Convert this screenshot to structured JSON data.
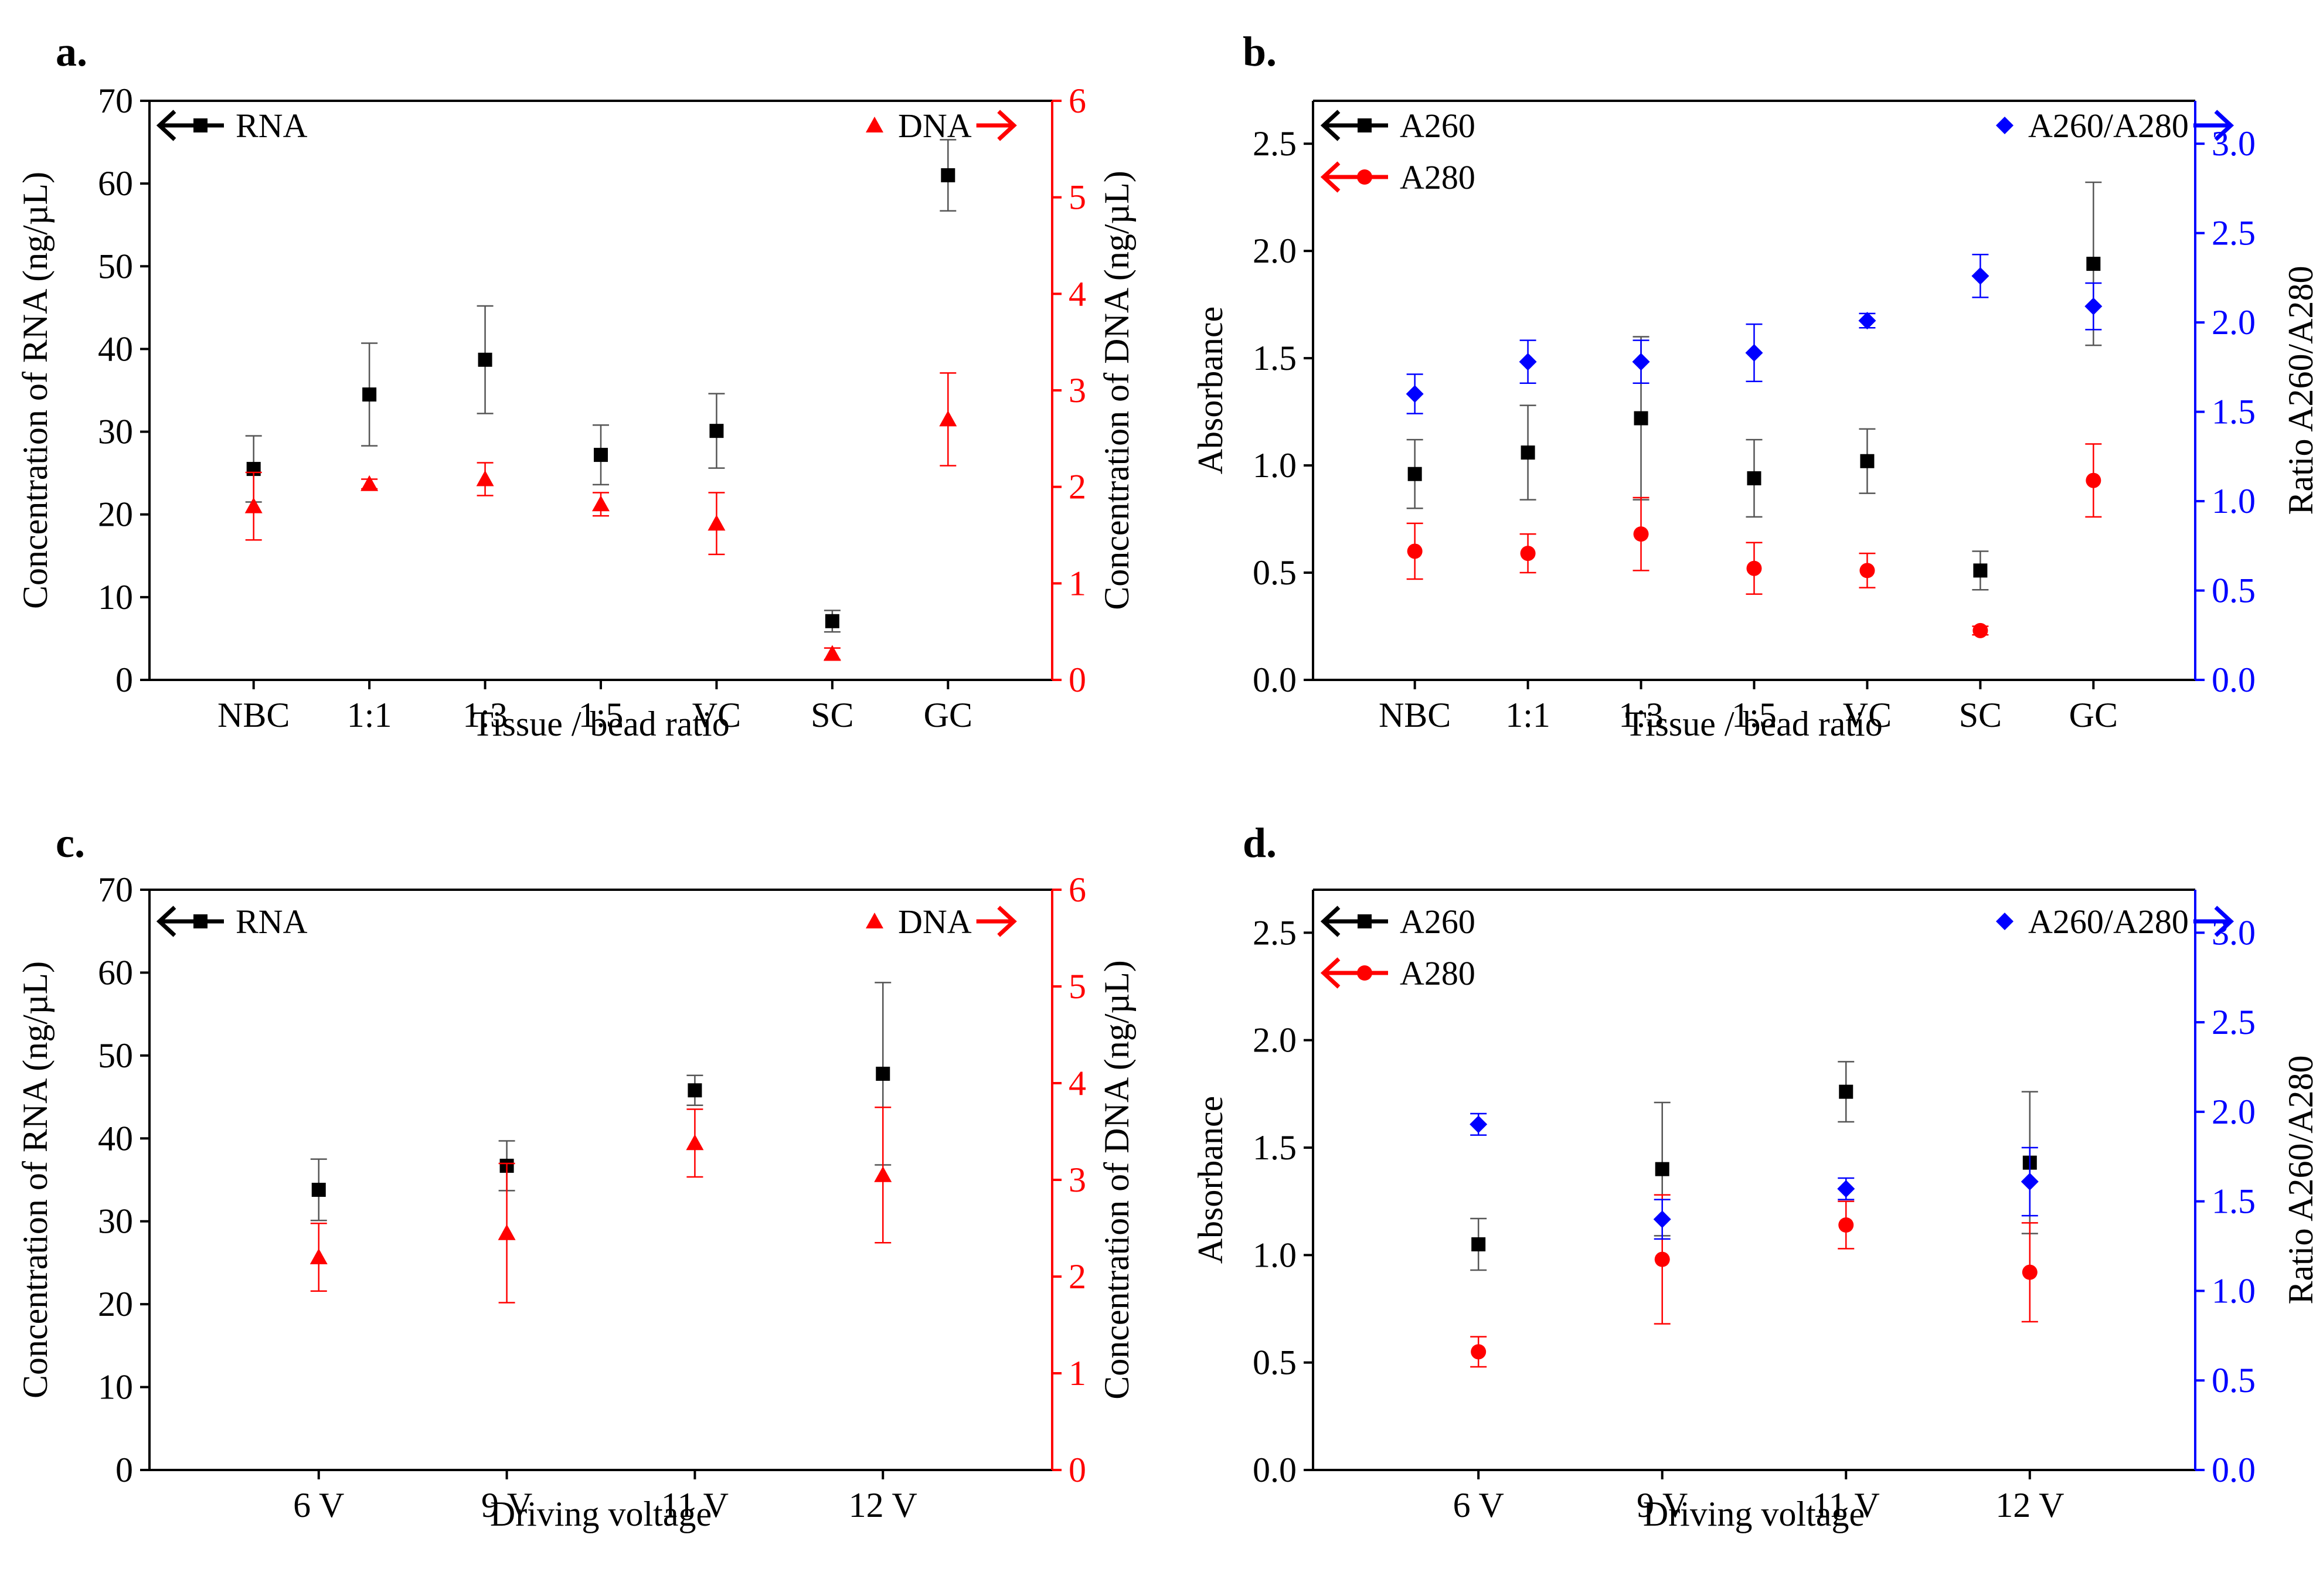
{
  "chart_data": [
    {
      "panel_label": "a.",
      "type": "scatter",
      "xlabel": "Tissue / bead ratio",
      "categories": [
        "NBC",
        "1:1",
        "1:3",
        "1:5",
        "VC",
        "SC",
        "GC"
      ],
      "y_left": {
        "label": "Concentration of RNA (ng/µL)",
        "lim": [
          0,
          70
        ],
        "ticks": [
          "0",
          "10",
          "20",
          "30",
          "40",
          "50",
          "60",
          "70"
        ]
      },
      "y_right": {
        "label": "Concentration of DNA (ng/µL)",
        "lim": [
          0,
          6
        ],
        "ticks": [
          "0",
          "1",
          "2",
          "3",
          "4",
          "5",
          "6"
        ],
        "color": "#ff0000"
      },
      "legend": [
        "RNA",
        "DNA"
      ],
      "series": [
        {
          "name": "RNA",
          "axis": "left",
          "marker": "square",
          "color": "#000000",
          "values": [
            25.5,
            34.5,
            38.7,
            27.2,
            30.1,
            7.1,
            61.0
          ],
          "errors": [
            4.0,
            6.2,
            6.5,
            3.6,
            4.5,
            1.3,
            4.3
          ]
        },
        {
          "name": "DNA",
          "axis": "right",
          "marker": "triangle",
          "color": "#ff0000",
          "values": [
            1.8,
            2.03,
            2.08,
            1.82,
            1.62,
            0.27,
            2.7
          ],
          "errors": [
            0.35,
            0.05,
            0.17,
            0.12,
            0.32,
            0.06,
            0.48
          ]
        }
      ]
    },
    {
      "panel_label": "b.",
      "type": "scatter",
      "xlabel": "Tissue / bead ratio",
      "categories": [
        "NBC",
        "1:1",
        "1:3",
        "1:5",
        "VC",
        "SC",
        "GC"
      ],
      "y_left": {
        "label": "Absorbance",
        "lim": [
          0,
          2.7
        ],
        "ticks": [
          "0.0",
          "0.5",
          "1.0",
          "1.5",
          "2.0",
          "2.5"
        ]
      },
      "y_right": {
        "label": "Ratio A260/A280",
        "lim": [
          0,
          3.24
        ],
        "ticks": [
          "0.0",
          "0.5",
          "1.0",
          "1.5",
          "2.0",
          "2.5",
          "3.0"
        ],
        "color": "#0000ff"
      },
      "legend": [
        "A260",
        "A280",
        "A260/A280"
      ],
      "series": [
        {
          "name": "A260",
          "axis": "left",
          "marker": "square",
          "color": "#000000",
          "values": [
            0.96,
            1.06,
            1.22,
            0.94,
            1.02,
            0.51,
            1.94
          ],
          "errors": [
            0.16,
            0.22,
            0.38,
            0.18,
            0.15,
            0.09,
            0.38
          ]
        },
        {
          "name": "A280",
          "axis": "left",
          "marker": "circle",
          "color": "#ff0000",
          "values": [
            0.6,
            0.59,
            0.68,
            0.52,
            0.51,
            0.23,
            0.93
          ],
          "errors": [
            0.13,
            0.09,
            0.17,
            0.12,
            0.08,
            0.02,
            0.17
          ]
        },
        {
          "name": "A260/A280",
          "axis": "right",
          "marker": "diamond",
          "color": "#0000ff",
          "values": [
            1.6,
            1.78,
            1.78,
            1.83,
            2.01,
            2.26,
            2.09
          ],
          "errors": [
            0.11,
            0.12,
            0.12,
            0.16,
            0.04,
            0.12,
            0.13
          ]
        }
      ]
    },
    {
      "panel_label": "c.",
      "type": "scatter",
      "xlabel": "Driving voltage",
      "categories": [
        "6 V",
        "9 V",
        "11 V",
        "12 V"
      ],
      "y_left": {
        "label": "Concentration of RNA (ng/µL)",
        "lim": [
          0,
          70
        ],
        "ticks": [
          "0",
          "10",
          "20",
          "30",
          "40",
          "50",
          "60",
          "70"
        ]
      },
      "y_right": {
        "label": "Concentration of DNA (ng/µL)",
        "lim": [
          0,
          6
        ],
        "ticks": [
          "0",
          "1",
          "2",
          "3",
          "4",
          "5",
          "6"
        ],
        "color": "#ff0000"
      },
      "legend": [
        "RNA",
        "DNA"
      ],
      "series": [
        {
          "name": "RNA",
          "axis": "left",
          "marker": "square",
          "color": "#000000",
          "values": [
            33.8,
            36.7,
            45.8,
            47.8
          ],
          "errors": [
            3.7,
            3.0,
            1.8,
            11.0
          ]
        },
        {
          "name": "DNA",
          "axis": "right",
          "marker": "triangle",
          "color": "#ff0000",
          "values": [
            2.2,
            2.45,
            3.38,
            3.05
          ],
          "errors": [
            0.35,
            0.72,
            0.35,
            0.7
          ]
        }
      ]
    },
    {
      "panel_label": "d.",
      "type": "scatter",
      "xlabel": "Driving voltage",
      "categories": [
        "6 V",
        "9 V",
        "11 V",
        "12 V"
      ],
      "y_left": {
        "label": "Absorbance",
        "lim": [
          0,
          2.7
        ],
        "ticks": [
          "0.0",
          "0.5",
          "1.0",
          "1.5",
          "2.0",
          "2.5"
        ]
      },
      "y_right": {
        "label": "Ratio A260/A280",
        "lim": [
          0,
          3.24
        ],
        "ticks": [
          "0.0",
          "0.5",
          "1.0",
          "1.5",
          "2.0",
          "2.5",
          "3.0"
        ],
        "color": "#0000ff"
      },
      "legend": [
        "A260",
        "A280",
        "A260/A280"
      ],
      "series": [
        {
          "name": "A260",
          "axis": "left",
          "marker": "square",
          "color": "#000000",
          "values": [
            1.05,
            1.4,
            1.76,
            1.43
          ],
          "errors": [
            0.12,
            0.31,
            0.14,
            0.33
          ]
        },
        {
          "name": "A280",
          "axis": "left",
          "marker": "circle",
          "color": "#ff0000",
          "values": [
            0.55,
            0.98,
            1.14,
            0.92
          ],
          "errors": [
            0.07,
            0.3,
            0.11,
            0.23
          ]
        },
        {
          "name": "A260/A280",
          "axis": "right",
          "marker": "diamond",
          "color": "#0000ff",
          "values": [
            1.93,
            1.4,
            1.57,
            1.61
          ],
          "errors": [
            0.06,
            0.11,
            0.06,
            0.19
          ]
        }
      ]
    }
  ]
}
